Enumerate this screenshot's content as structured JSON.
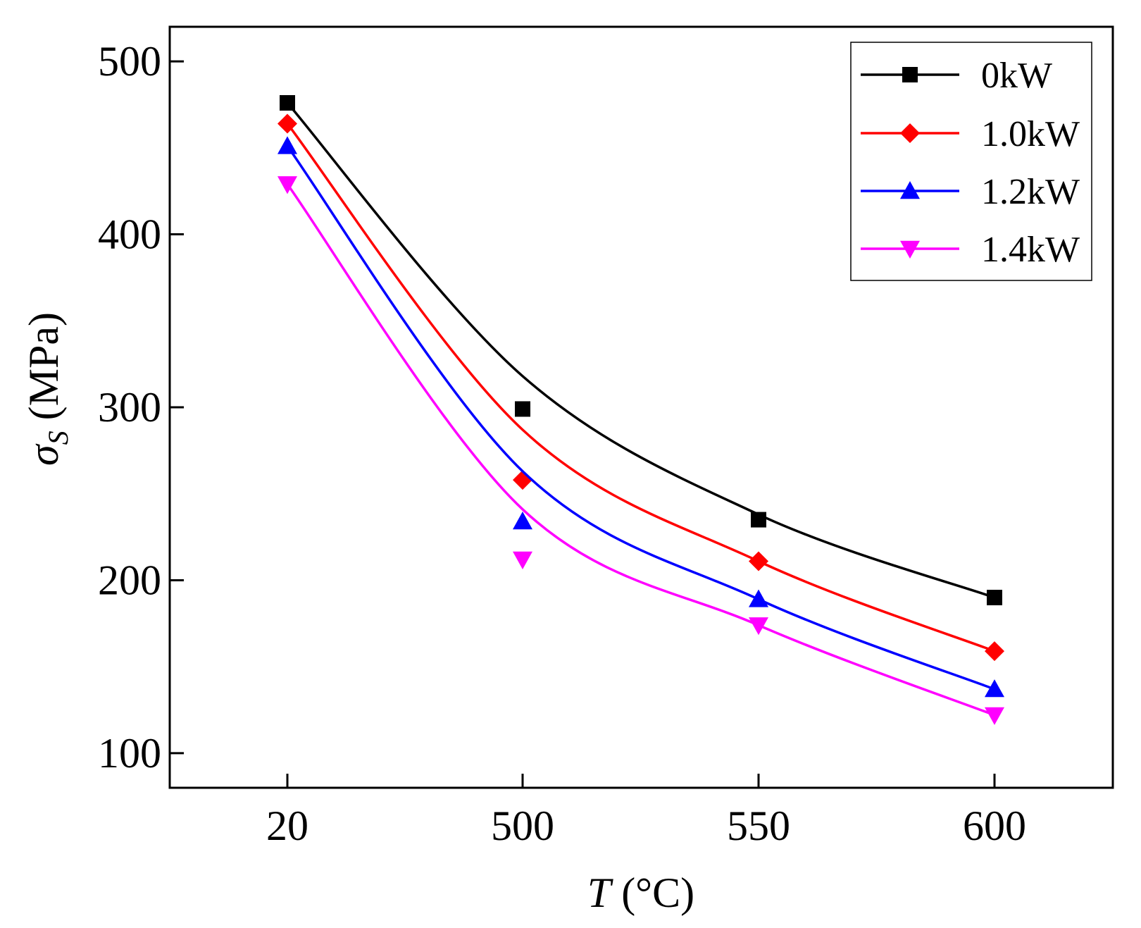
{
  "chart_data": {
    "type": "line",
    "categories": [
      "20",
      "500",
      "550",
      "600"
    ],
    "x_tick_labels": [
      "20",
      "500",
      "550",
      "600"
    ],
    "y_ticks": [
      100,
      200,
      300,
      400,
      500
    ],
    "y_tick_labels": [
      "100",
      "200",
      "300",
      "400",
      "500"
    ],
    "ylim": [
      80,
      520
    ],
    "xlabel_italic": "T",
    "xlabel_unit": " (°C)",
    "ylabel_symbol": "σ",
    "ylabel_subscript": "S",
    "ylabel_unit": " (MPa)",
    "legend_position": "top-right",
    "series": [
      {
        "name": "0kW",
        "color": "#000000",
        "marker": "square",
        "values": [
          476,
          299,
          235,
          190
        ],
        "fit": [
          476,
          318,
          238,
          190
        ]
      },
      {
        "name": "1.0kW",
        "color": "#ff0000",
        "marker": "diamond",
        "values": [
          464,
          258,
          211,
          159
        ],
        "fit": [
          464,
          287,
          211,
          159
        ]
      },
      {
        "name": "1.2kW",
        "color": "#0000ff",
        "marker": "triangle-up",
        "values": [
          451,
          234,
          189,
          137
        ],
        "fit": [
          451,
          263,
          189,
          137
        ]
      },
      {
        "name": "1.4kW",
        "color": "#ff00ff",
        "marker": "triangle-down",
        "values": [
          429,
          212,
          174,
          122
        ],
        "fit": [
          429,
          241,
          174,
          122
        ]
      }
    ]
  }
}
